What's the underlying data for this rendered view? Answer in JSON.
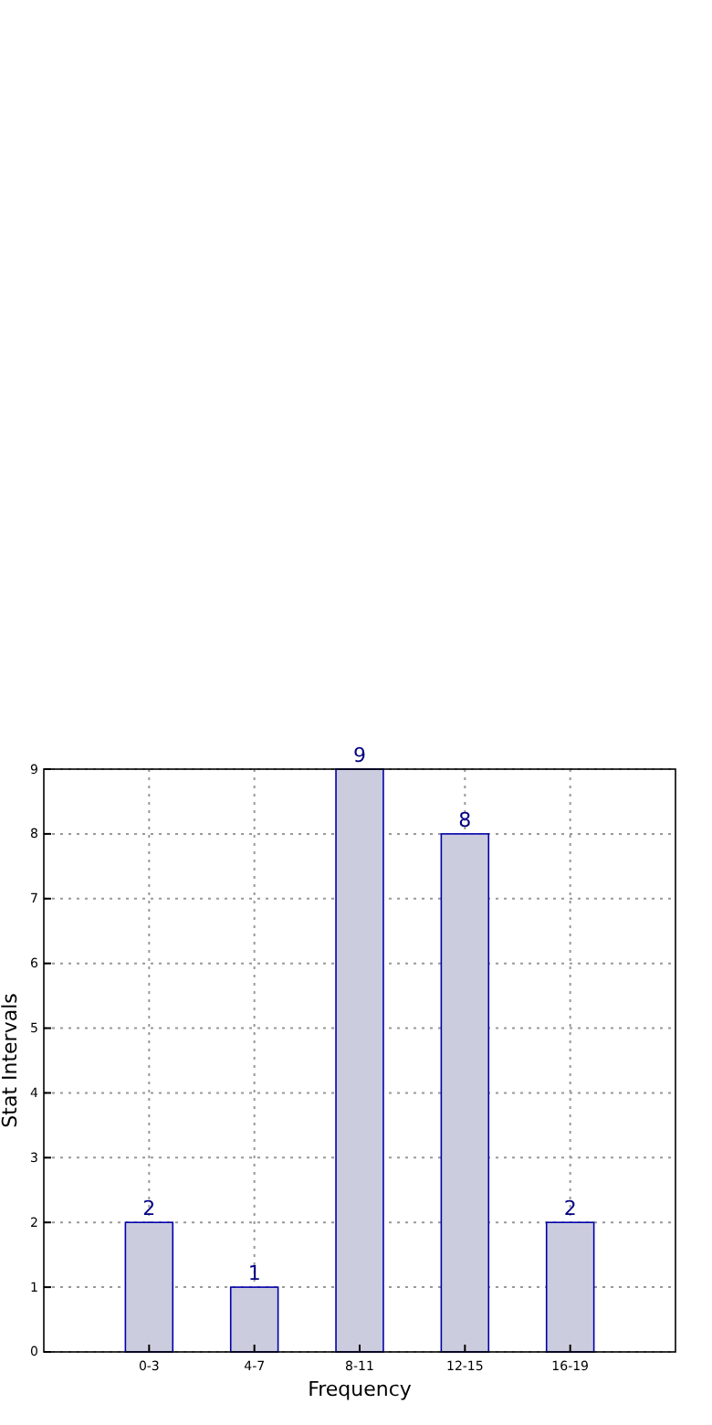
{
  "chart_data": {
    "type": "bar",
    "xlabel": "Frequency",
    "ylabel": "Stat Intervals",
    "categories": [
      "0-3",
      "4-7",
      "8-11",
      "12-15",
      "16-19"
    ],
    "values": [
      2,
      1,
      9,
      8,
      2
    ],
    "color": "#ccccdf",
    "ylim": [
      0,
      9
    ],
    "yticks": [
      0,
      1,
      2,
      3,
      4,
      5,
      6,
      7,
      8,
      9
    ],
    "grid": true,
    "data_labels": true
  }
}
